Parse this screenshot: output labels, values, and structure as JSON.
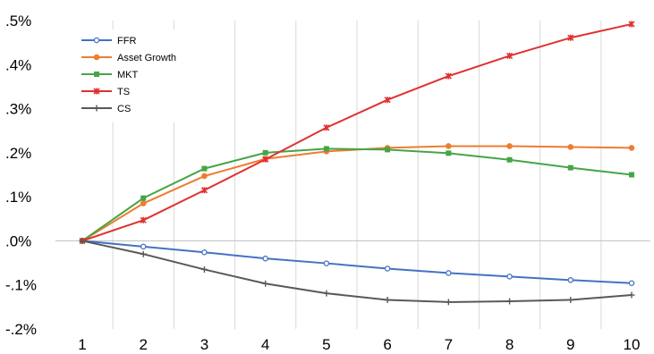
{
  "chart_data": {
    "type": "line",
    "title": "",
    "xlabel": "",
    "ylabel": "",
    "x": [
      1,
      2,
      3,
      4,
      5,
      6,
      7,
      8,
      9,
      10
    ],
    "x_tick_labels": [
      "1",
      "2",
      "3",
      "4",
      "5",
      "6",
      "7",
      "8",
      "9",
      "10"
    ],
    "ylim": [
      -0.2,
      0.5
    ],
    "y_ticks": [
      0.5,
      0.4,
      0.3,
      0.2,
      0.1,
      0.0,
      -0.1,
      -0.2
    ],
    "y_tick_labels": [
      ".5%",
      ".4%",
      ".3%",
      ".2%",
      ".1%",
      ".0%",
      "-.1%",
      "-.2%"
    ],
    "grid": "vertical",
    "legend_position": "top-left",
    "series": [
      {
        "name": "FFR",
        "color": "#4472c4",
        "marker": "circle-open",
        "values": [
          0.0,
          -0.013,
          -0.026,
          -0.04,
          -0.051,
          -0.063,
          -0.073,
          -0.081,
          -0.089,
          -0.096
        ]
      },
      {
        "name": "Asset Growth",
        "color": "#ed7d31",
        "marker": "circle",
        "values": [
          0.0,
          0.085,
          0.147,
          0.186,
          0.203,
          0.211,
          0.215,
          0.215,
          0.213,
          0.211
        ]
      },
      {
        "name": "MKT",
        "color": "#47a447",
        "marker": "square",
        "values": [
          0.0,
          0.097,
          0.164,
          0.2,
          0.209,
          0.207,
          0.199,
          0.184,
          0.166,
          0.15
        ]
      },
      {
        "name": "TS",
        "color": "#e03030",
        "marker": "star",
        "values": [
          0.0,
          0.047,
          0.115,
          0.185,
          0.257,
          0.32,
          0.374,
          0.42,
          0.461,
          0.492
        ]
      },
      {
        "name": "CS",
        "color": "#595959",
        "marker": "plus",
        "values": [
          0.0,
          -0.03,
          -0.065,
          -0.097,
          -0.119,
          -0.134,
          -0.139,
          -0.137,
          -0.134,
          -0.123
        ]
      }
    ]
  }
}
